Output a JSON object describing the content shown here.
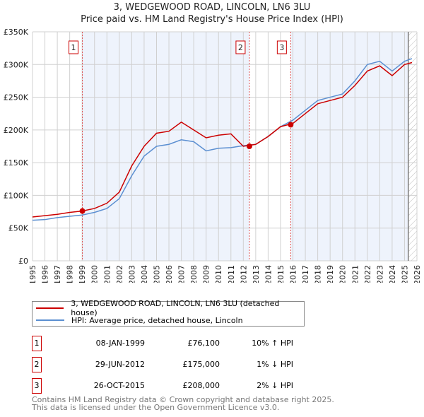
{
  "chart_data": {
    "type": "line",
    "title": "3, WEDGEWOOD ROAD, LINCOLN, LN6 3LU",
    "subtitle": "Price paid vs. HM Land Registry's House Price Index (HPI)",
    "xlim": [
      1995,
      2026
    ],
    "ylim": [
      0,
      350000
    ],
    "y_ticks": [
      0,
      50000,
      100000,
      150000,
      200000,
      250000,
      300000,
      350000
    ],
    "y_tick_labels": [
      "£0",
      "£50K",
      "£100K",
      "£150K",
      "£200K",
      "£250K",
      "£300K",
      "£350K"
    ],
    "x_tick_labels": [
      "1995",
      "1996",
      "1997",
      "1998",
      "1999",
      "2000",
      "2001",
      "2002",
      "2003",
      "2004",
      "2005",
      "2006",
      "2007",
      "2008",
      "2009",
      "2010",
      "2011",
      "2012",
      "2013",
      "2014",
      "2015",
      "2016",
      "2017",
      "2018",
      "2019",
      "2020",
      "2021",
      "2022",
      "2023",
      "2024",
      "2025",
      "2026"
    ],
    "grid": true,
    "x": [
      1995,
      1996,
      1997,
      1998,
      1999,
      2000,
      2001,
      2002,
      2003,
      2004,
      2005,
      2006,
      2007,
      2008,
      2009,
      2010,
      2011,
      2012,
      2013,
      2014,
      2015,
      2016,
      2017,
      2018,
      2019,
      2020,
      2021,
      2022,
      2023,
      2024,
      2025,
      2025.6
    ],
    "series": [
      {
        "name": "3, WEDGEWOOD ROAD, LINCOLN, LN6 3LU (detached house)",
        "color": "#cc0000",
        "values": [
          67000,
          69000,
          71000,
          74000,
          76000,
          80000,
          88000,
          105000,
          145000,
          175000,
          195000,
          198000,
          212000,
          200000,
          188000,
          192000,
          194000,
          175000,
          178000,
          190000,
          205000,
          210000,
          225000,
          240000,
          245000,
          250000,
          268000,
          290000,
          298000,
          283000,
          300000,
          303000
        ]
      },
      {
        "name": "HPI: Average price, detached house, Lincoln",
        "color": "#5b8fd1",
        "values": [
          62000,
          63000,
          66000,
          68000,
          70000,
          74000,
          80000,
          95000,
          130000,
          160000,
          175000,
          178000,
          185000,
          182000,
          168000,
          172000,
          173000,
          176000,
          178000,
          190000,
          205000,
          215000,
          230000,
          245000,
          250000,
          255000,
          275000,
          300000,
          305000,
          290000,
          305000,
          309000
        ]
      }
    ],
    "sales": [
      {
        "label": "1",
        "x": 1999.02,
        "price": 76100,
        "date": "08-JAN-1999",
        "price_text": "£76,100",
        "hpi_text": "10% ↑ HPI"
      },
      {
        "label": "2",
        "x": 2012.49,
        "price": 175000,
        "date": "29-JUN-2012",
        "price_text": "£175,000",
        "hpi_text": "1% ↓ HPI"
      },
      {
        "label": "3",
        "x": 2015.82,
        "price": 208000,
        "date": "26-OCT-2015",
        "price_text": "£208,000",
        "hpi_text": "2% ↓ HPI"
      }
    ],
    "hatched_from": 2025.3,
    "legend_placement": "below"
  },
  "footer": {
    "line1": "Contains HM Land Registry data © Crown copyright and database right 2025.",
    "line2": "This data is licensed under the Open Government Licence v3.0."
  }
}
